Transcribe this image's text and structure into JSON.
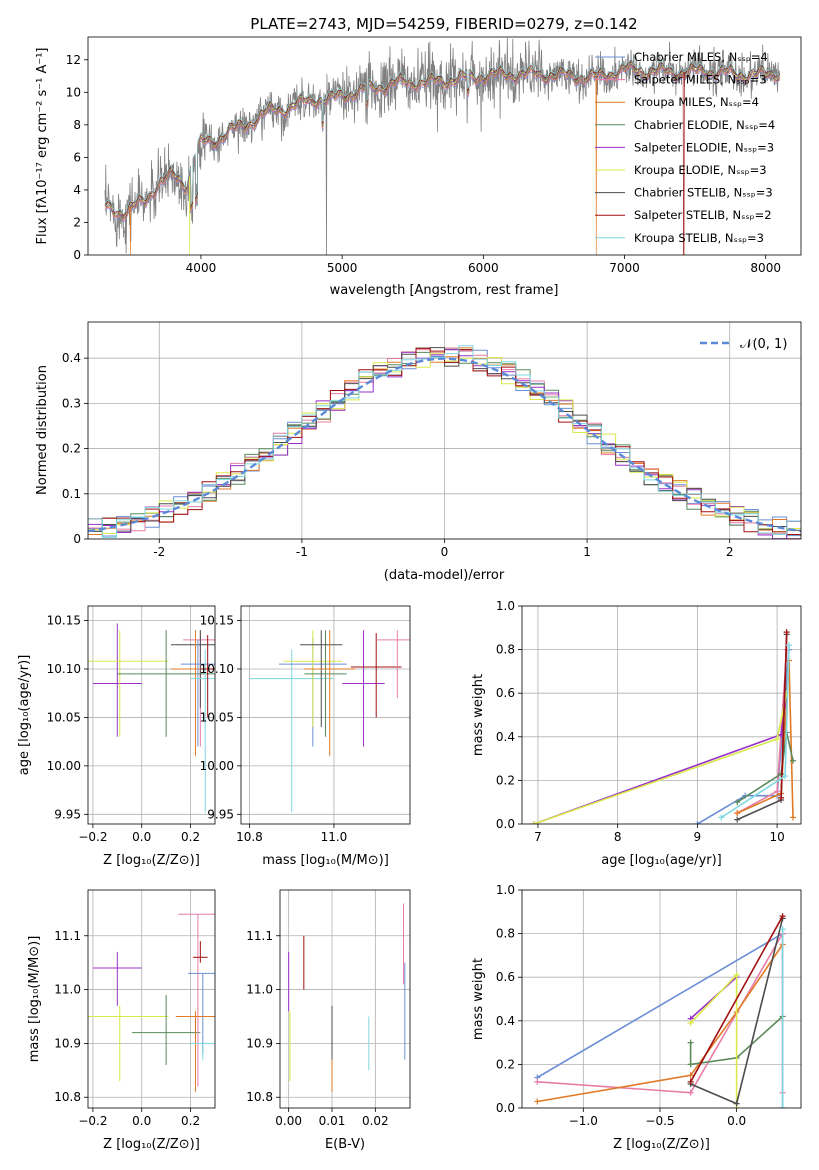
{
  "figure_title": "PLATE=2743, MJD=54259, FIBERID=0279, z=0.142",
  "colors": {
    "Chabrier MILES": "#6b8fd6",
    "Salpeter MILES": "#e87da8",
    "Kroupa MILES": "#e07a26",
    "Chabrier ELODIE": "#5a8a5a",
    "Salpeter ELODIE": "#9a30c8",
    "Kroupa ELODIE": "#d9e84a",
    "Chabrier STELIB": "#4d4d4d",
    "Salpeter STELIB": "#a01010",
    "Kroupa STELIB": "#7fd8e0",
    "data": "#808080"
  },
  "chart_data": [
    {
      "id": "spectrum",
      "type": "line",
      "title": "PLATE=2743, MJD=54259, FIBERID=0279, z=0.142",
      "xlabel": "wavelength [Angstrom, rest frame]",
      "ylabel": "Flux [fλ10⁻¹⁷ erg cm⁻² s⁻¹ A⁻¹]",
      "xlim": [
        3200,
        8250
      ],
      "ylim": [
        0,
        13.4
      ],
      "xticks": [
        4000,
        5000,
        6000,
        7000,
        8000
      ],
      "yticks": [
        0,
        2,
        4,
        6,
        8,
        10,
        12
      ],
      "legend_position": "top-right",
      "legend": [
        "Chabrier MILES, Nₛₛₚ=4",
        "Salpeter MILES, Nₛₛₚ=3",
        "Kroupa MILES, Nₛₛₚ=4",
        "Chabrier ELODIE, Nₛₛₚ=4",
        "Salpeter ELODIE, Nₛₛₚ=3",
        "Kroupa ELODIE, Nₛₛₚ=3",
        "Chabrier STELIB, Nₛₛₚ=3",
        "Salpeter STELIB, Nₛₛₚ=2",
        "Kroupa STELIB, Nₛₛₚ=3"
      ],
      "continuum": {
        "x": [
          3320,
          3450,
          3600,
          3700,
          3800,
          3900,
          3950,
          4000,
          4100,
          4200,
          4300,
          4400,
          4500,
          4600,
          4700,
          4800,
          4900,
          5000,
          5200,
          5400,
          5600,
          5800,
          6000,
          6200,
          6400,
          6600,
          6800,
          7000,
          7200,
          7400,
          7600,
          7800,
          8000,
          8100
        ],
        "y": [
          2.9,
          2.6,
          3.3,
          4.4,
          4.9,
          4.3,
          6.0,
          6.9,
          7.0,
          7.6,
          7.9,
          8.4,
          8.9,
          9.0,
          9.3,
          9.6,
          9.5,
          9.8,
          10.2,
          10.6,
          10.6,
          10.8,
          11.0,
          11.1,
          11.1,
          11.0,
          10.9,
          11.4,
          11.3,
          11.2,
          11.3,
          11.1,
          11.1,
          11.2
        ]
      },
      "model_dropouts": [
        {
          "series": "Kroupa MILES",
          "x": 3500,
          "min_y": 0
        },
        {
          "series": "Kroupa ELODIE",
          "x": 3920,
          "min_y": 0
        },
        {
          "series": "Kroupa MILES",
          "x": 6800,
          "min_y": 0
        },
        {
          "series": "Salpeter STELIB",
          "x": 7420,
          "min_y": 0
        }
      ]
    },
    {
      "id": "residual_histogram",
      "type": "histogram",
      "xlabel": "(data-model)/error",
      "ylabel": "Normed distribution",
      "xlim": [
        -2.5,
        2.5
      ],
      "ylim": [
        0,
        0.48
      ],
      "xticks": [
        -2,
        -1,
        0,
        1,
        2
      ],
      "yticks": [
        0.0,
        0.1,
        0.2,
        0.3,
        0.4
      ],
      "grid": true,
      "legend_position": "top-right",
      "legend": [
        "𝒩(0, 1)"
      ],
      "reference_curve": "gaussian mean 0 sigma 1",
      "bin_width": 0.1
    },
    {
      "id": "age_vs_Z",
      "type": "errorbar",
      "xlabel": "Z [log₁₀(Z/Z⊙)]",
      "ylabel": "age  [log₁₀(age/yr)]",
      "xlim": [
        -0.22,
        0.3
      ],
      "ylim": [
        9.94,
        10.165
      ],
      "xticks": [
        -0.2,
        0.0,
        0.2
      ],
      "xticklabels": [
        "−0.2",
        "0.0",
        "0.2"
      ],
      "yticks": [
        9.95,
        10.0,
        10.05,
        10.1,
        10.15
      ],
      "yticklabels": [
        "9.95",
        "10.00",
        "10.05",
        "10.10",
        "10.15"
      ],
      "grid": true,
      "points": [
        {
          "series": "Salpeter ELODIE",
          "x": -0.1,
          "xerr": 0.1,
          "y": 10.085,
          "ylo": 10.03,
          "yhi": 10.147
        },
        {
          "series": "Kroupa ELODIE",
          "x": -0.09,
          "xerr": 0.2,
          "y": 10.108,
          "ylo": 10.03,
          "yhi": 10.14
        },
        {
          "series": "Chabrier ELODIE",
          "x": 0.1,
          "xerr": 0.2,
          "y": 10.095,
          "ylo": 10.03,
          "yhi": 10.14
        },
        {
          "series": "Salpeter MILES",
          "x": 0.24,
          "xerr": 0.07,
          "y": 10.13,
          "ylo": 10.02,
          "yhi": 10.14
        },
        {
          "series": "Chabrier STELIB",
          "x": 0.24,
          "xerr": 0.12,
          "y": 10.125,
          "ylo": 10.06,
          "yhi": 10.14
        },
        {
          "series": "Kroupa MILES",
          "x": 0.22,
          "xerr": 0.1,
          "y": 10.1,
          "ylo": 10.01,
          "yhi": 10.14
        },
        {
          "series": "Chabrier MILES",
          "x": 0.23,
          "xerr": 0.07,
          "y": 10.105,
          "ylo": 10.02,
          "yhi": 10.13
        },
        {
          "series": "Kroupa STELIB",
          "x": 0.26,
          "xerr": 0.06,
          "y": 10.09,
          "ylo": 9.952,
          "yhi": 10.12
        },
        {
          "series": "Salpeter STELIB",
          "x": 0.27,
          "xerr": 0.03,
          "y": 10.1,
          "ylo": 10.05,
          "yhi": 10.135
        }
      ]
    },
    {
      "id": "age_vs_mass",
      "type": "errorbar",
      "xlabel": "mass [log₁₀(M/M⊙)]",
      "ylabel": "",
      "xlim": [
        10.78,
        11.18
      ],
      "ylim": [
        9.94,
        10.165
      ],
      "xticks": [
        10.8,
        11.0
      ],
      "xticklabels": [
        "10.8",
        "11.0"
      ],
      "yticks": [
        9.95,
        10.0,
        10.05,
        10.1,
        10.15
      ],
      "yticklabels": [
        "9.95",
        "10.00",
        "10.05",
        "10.10",
        "10.15"
      ],
      "grid": true,
      "points": [
        {
          "series": "Kroupa STELIB",
          "x": 10.9,
          "xerr": 0.1,
          "y": 10.09,
          "ylo": 9.952,
          "yhi": 10.12
        },
        {
          "series": "Chabrier MILES",
          "x": 10.95,
          "xerr": 0.08,
          "y": 10.105,
          "ylo": 10.02,
          "yhi": 10.132
        },
        {
          "series": "Kroupa ELODIE",
          "x": 10.95,
          "xerr": 0.07,
          "y": 10.108,
          "ylo": 10.04,
          "yhi": 10.14
        },
        {
          "series": "Chabrier ELODIE",
          "x": 10.98,
          "xerr": 0.05,
          "y": 10.095,
          "ylo": 10.03,
          "yhi": 10.14
        },
        {
          "series": "Chabrier STELIB",
          "x": 10.97,
          "xerr": 0.05,
          "y": 10.125,
          "ylo": 10.04,
          "yhi": 10.14
        },
        {
          "series": "Kroupa MILES",
          "x": 10.99,
          "xerr": 0.06,
          "y": 10.1,
          "ylo": 10.01,
          "yhi": 10.14
        },
        {
          "series": "Salpeter ELODIE",
          "x": 11.07,
          "xerr": 0.05,
          "y": 10.085,
          "ylo": 10.02,
          "yhi": 10.14
        },
        {
          "series": "Salpeter STELIB",
          "x": 11.1,
          "xerr": 0.06,
          "y": 10.102,
          "ylo": 10.05,
          "yhi": 10.137
        },
        {
          "series": "Salpeter MILES",
          "x": 11.15,
          "xerr": 0.05,
          "y": 10.13,
          "ylo": 10.07,
          "yhi": 10.14
        }
      ]
    },
    {
      "id": "weight_vs_age",
      "type": "line",
      "xlabel": "age  [log₁₀(age/yr)]",
      "ylabel": "mass weight",
      "xlim": [
        6.8,
        10.3
      ],
      "ylim": [
        0.0,
        1.0
      ],
      "xticks": [
        7,
        8,
        9,
        10
      ],
      "yticks": [
        0.0,
        0.2,
        0.4,
        0.6,
        0.8,
        1.0
      ],
      "yticklabels": [
        "0.0",
        "0.2",
        "0.4",
        "0.6",
        "0.8",
        "1.0"
      ],
      "grid": true,
      "series": [
        {
          "series": "Chabrier MILES",
          "x": [
            9.0,
            9.6,
            10.0,
            10.15
          ],
          "y": [
            0.0,
            0.13,
            0.13,
            0.8
          ]
        },
        {
          "series": "Salpeter MILES",
          "x": [
            9.5,
            10.0,
            10.12
          ],
          "y": [
            0.05,
            0.15,
            0.8
          ]
        },
        {
          "series": "Kroupa MILES",
          "x": [
            9.5,
            10.05,
            10.15,
            10.2
          ],
          "y": [
            0.05,
            0.14,
            0.75,
            0.03
          ]
        },
        {
          "series": "Chabrier ELODIE",
          "x": [
            9.5,
            10.05,
            10.12,
            10.2
          ],
          "y": [
            0.1,
            0.23,
            0.42,
            0.29
          ]
        },
        {
          "series": "Salpeter ELODIE",
          "x": [
            6.95,
            10.05,
            10.12
          ],
          "y": [
            0.0,
            0.41,
            0.6
          ]
        },
        {
          "series": "Kroupa ELODIE",
          "x": [
            6.95,
            10.0,
            10.12
          ],
          "y": [
            0.0,
            0.39,
            0.6
          ]
        },
        {
          "series": "Chabrier STELIB",
          "x": [
            9.5,
            10.05,
            10.12
          ],
          "y": [
            0.02,
            0.11,
            0.87
          ]
        },
        {
          "series": "Salpeter STELIB",
          "x": [
            10.05,
            10.12
          ],
          "y": [
            0.12,
            0.88
          ]
        },
        {
          "series": "Kroupa STELIB",
          "x": [
            9.3,
            10.1,
            10.15
          ],
          "y": [
            0.03,
            0.22,
            0.82
          ]
        }
      ]
    },
    {
      "id": "mass_vs_Z",
      "type": "errorbar",
      "xlabel": "Z [log₁₀(Z/Z⊙)]",
      "ylabel": "mass [log₁₀(M/M⊙)]",
      "xlim": [
        -0.22,
        0.3
      ],
      "ylim": [
        10.78,
        11.185
      ],
      "xticks": [
        -0.2,
        0.0,
        0.2
      ],
      "xticklabels": [
        "−0.2",
        "0.0",
        "0.2"
      ],
      "yticks": [
        10.8,
        10.9,
        11.0,
        11.1
      ],
      "yticklabels": [
        "10.8",
        "10.9",
        "11.0",
        "11.1"
      ],
      "grid": true,
      "points": [
        {
          "series": "Salpeter ELODIE",
          "x": -0.1,
          "xerr": 0.1,
          "y": 11.04,
          "ylo": 10.97,
          "yhi": 11.07
        },
        {
          "series": "Kroupa ELODIE",
          "x": -0.09,
          "xerr": 0.2,
          "y": 10.95,
          "ylo": 10.83,
          "yhi": 10.97
        },
        {
          "series": "Chabrier ELODIE",
          "x": 0.1,
          "xerr": 0.14,
          "y": 10.92,
          "ylo": 10.86,
          "yhi": 10.99
        },
        {
          "series": "Salpeter MILES",
          "x": 0.23,
          "xerr": 0.08,
          "y": 11.14,
          "ylo": 10.82,
          "yhi": 11.14
        },
        {
          "series": "Salpeter STELIB",
          "x": 0.24,
          "xerr": 0.03,
          "y": 11.06,
          "ylo": 11.05,
          "yhi": 11.09
        },
        {
          "series": "Chabrier MILES",
          "x": 0.25,
          "xerr": 0.06,
          "y": 11.03,
          "ylo": 10.88,
          "yhi": 11.03
        },
        {
          "series": "Chabrier STELIB",
          "x": 0.22,
          "xerr": 0.05,
          "y": 10.95,
          "ylo": 10.91,
          "yhi": 10.95
        },
        {
          "series": "Kroupa MILES",
          "x": 0.22,
          "xerr": 0.08,
          "y": 10.95,
          "ylo": 10.81,
          "yhi": 10.96
        },
        {
          "series": "Kroupa STELIB",
          "x": 0.25,
          "xerr": 0.05,
          "y": 10.9,
          "ylo": 10.87,
          "yhi": 10.9
        }
      ]
    },
    {
      "id": "mass_vs_EBV",
      "type": "errorbar",
      "xlabel": "E(B-V)",
      "ylabel": "",
      "xlim": [
        -0.002,
        0.028
      ],
      "ylim": [
        10.78,
        11.185
      ],
      "xticks": [
        0.0,
        0.01,
        0.02
      ],
      "xticklabels": [
        "0.00",
        "0.01",
        "0.02"
      ],
      "yticks": [
        10.8,
        10.9,
        11.0,
        11.1
      ],
      "yticklabels": [
        "10.8",
        "10.9",
        "11.0",
        "11.1"
      ],
      "grid": true,
      "points": [
        {
          "series": "Salpeter ELODIE",
          "x": 0.0,
          "ylo": 10.96,
          "yhi": 11.07
        },
        {
          "series": "Kroupa ELODIE",
          "x": 0.0003,
          "ylo": 10.83,
          "yhi": 10.96
        },
        {
          "series": "Salpeter STELIB",
          "x": 0.0035,
          "ylo": 11.0,
          "yhi": 11.1
        },
        {
          "series": "Kroupa MILES",
          "x": 0.01,
          "ylo": 10.81,
          "yhi": 10.87
        },
        {
          "series": "Chabrier STELIB",
          "x": 0.01,
          "ylo": 10.87,
          "yhi": 10.97
        },
        {
          "series": "Kroupa STELIB",
          "x": 0.0185,
          "ylo": 10.85,
          "yhi": 10.95
        },
        {
          "series": "Salpeter MILES",
          "x": 0.0265,
          "ylo": 11.01,
          "yhi": 11.16
        },
        {
          "series": "Chabrier MILES",
          "x": 0.0268,
          "ylo": 10.87,
          "yhi": 11.05
        }
      ]
    },
    {
      "id": "weight_vs_Z",
      "type": "line",
      "xlabel": "Z [log₁₀(Z/Z⊙)]",
      "ylabel": "mass weight",
      "xlim": [
        -1.4,
        0.42
      ],
      "ylim": [
        0.0,
        1.0
      ],
      "xticks": [
        -1.0,
        -0.5,
        0.0
      ],
      "xticklabels": [
        "−1.0",
        "−0.5",
        "0.0"
      ],
      "yticks": [
        0.0,
        0.2,
        0.4,
        0.6,
        0.8,
        1.0
      ],
      "yticklabels": [
        "0.0",
        "0.2",
        "0.4",
        "0.6",
        "0.8",
        "1.0"
      ],
      "grid": true,
      "series": [
        {
          "series": "Chabrier MILES",
          "x": [
            -1.3,
            0.3,
            0.3
          ],
          "y": [
            0.14,
            0.8,
            0.0
          ]
        },
        {
          "series": "Salpeter MILES",
          "x": [
            -1.3,
            -0.3,
            0.3,
            0.3
          ],
          "y": [
            0.12,
            0.07,
            0.8,
            0.07
          ]
        },
        {
          "series": "Kroupa MILES",
          "x": [
            -1.3,
            -0.3,
            0.0,
            0.3
          ],
          "y": [
            0.03,
            0.15,
            0.44,
            0.75
          ]
        },
        {
          "series": "Chabrier ELODIE",
          "x": [
            -0.3,
            -0.3,
            0.0,
            0.3
          ],
          "y": [
            0.3,
            0.2,
            0.23,
            0.42
          ]
        },
        {
          "series": "Salpeter ELODIE",
          "x": [
            -0.3,
            0.0
          ],
          "y": [
            0.41,
            0.6
          ]
        },
        {
          "series": "Kroupa ELODIE",
          "x": [
            -0.3,
            0.0,
            0.0
          ],
          "y": [
            0.39,
            0.61,
            0.0
          ]
        },
        {
          "series": "Chabrier STELIB",
          "x": [
            -0.3,
            0.0,
            0.3
          ],
          "y": [
            0.11,
            0.02,
            0.87
          ]
        },
        {
          "series": "Salpeter STELIB",
          "x": [
            -0.3,
            0.3
          ],
          "y": [
            0.12,
            0.88
          ]
        },
        {
          "series": "Kroupa STELIB",
          "x": [
            0.3,
            0.3
          ],
          "y": [
            0.82,
            0.0
          ]
        }
      ]
    }
  ]
}
